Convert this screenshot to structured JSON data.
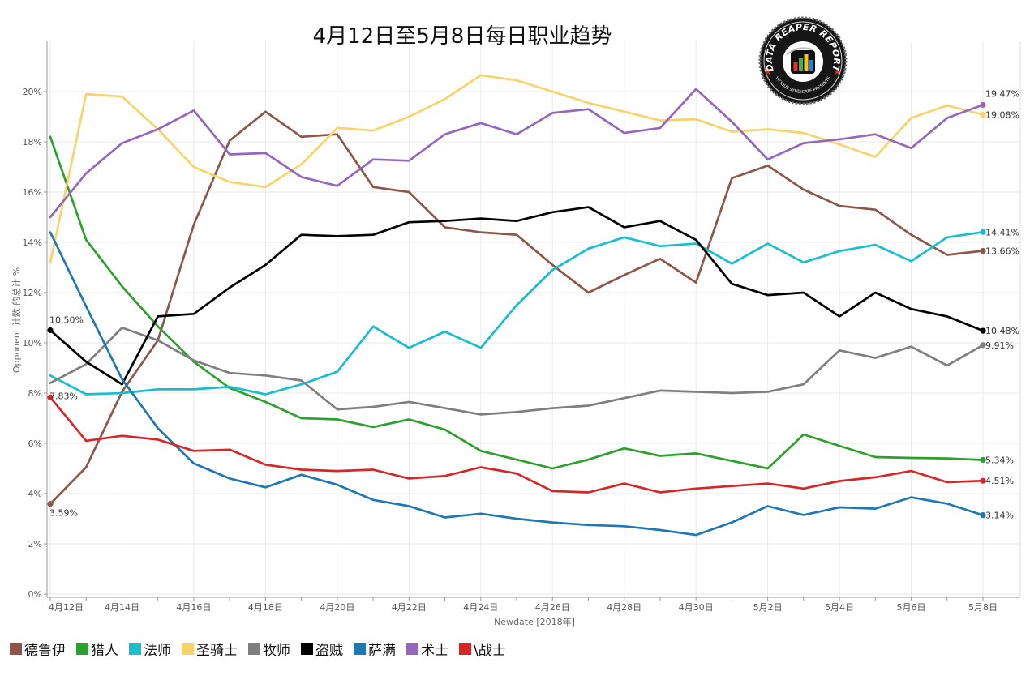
{
  "chart_data": {
    "type": "line",
    "title": "4月12日至5月8日每日职业趋势",
    "xlabel": "Newdate [2018年]",
    "ylabel": "Opponent 计数 的总计 %",
    "x": [
      0,
      1,
      2,
      3,
      4,
      5,
      6,
      7,
      8,
      9,
      10,
      11,
      12,
      13,
      14,
      15,
      16,
      17,
      18,
      19,
      20,
      21,
      22,
      23,
      24,
      25,
      26
    ],
    "x_ticks": [
      {
        "day": 0,
        "label": "4月12日"
      },
      {
        "day": 2,
        "label": "4月14日"
      },
      {
        "day": 4,
        "label": "4月16日"
      },
      {
        "day": 6,
        "label": "4月18日"
      },
      {
        "day": 8,
        "label": "4月20日"
      },
      {
        "day": 10,
        "label": "4月22日"
      },
      {
        "day": 12,
        "label": "4月24日"
      },
      {
        "day": 14,
        "label": "4月26日"
      },
      {
        "day": 16,
        "label": "4月28日"
      },
      {
        "day": 18,
        "label": "4月30日"
      },
      {
        "day": 20,
        "label": "5月2日"
      },
      {
        "day": 22,
        "label": "5月4日"
      },
      {
        "day": 24,
        "label": "5月6日"
      },
      {
        "day": 26,
        "label": "5月8日"
      }
    ],
    "y_ticks": [
      {
        "value": 0,
        "label": "0%"
      },
      {
        "value": 2,
        "label": "2%"
      },
      {
        "value": 4,
        "label": "4%"
      },
      {
        "value": 6,
        "label": "6%"
      },
      {
        "value": 8,
        "label": "8%"
      },
      {
        "value": 10,
        "label": "10%"
      },
      {
        "value": 12,
        "label": "12%"
      },
      {
        "value": 14,
        "label": "14%"
      },
      {
        "value": 16,
        "label": "16%"
      },
      {
        "value": 18,
        "label": "18%"
      },
      {
        "value": 20,
        "label": "20%"
      }
    ],
    "ylim": [
      0,
      22
    ],
    "grid": true,
    "legend_position": "bottom",
    "series": [
      {
        "name": "德鲁伊",
        "color": "#8c564b",
        "values": [
          3.59,
          5.05,
          8.05,
          10.1,
          14.7,
          18.05,
          19.2,
          18.2,
          18.3,
          16.2,
          16.0,
          14.6,
          14.4,
          14.3,
          13.1,
          12.0,
          12.7,
          13.35,
          12.4,
          16.55,
          17.05,
          16.1,
          15.45,
          15.3,
          14.3,
          13.5,
          13.66
        ],
        "start_label": "3.59%",
        "end_label": "13.66%"
      },
      {
        "name": "猎人",
        "color": "#2ca02c",
        "values": [
          18.2,
          14.1,
          12.25,
          10.65,
          9.25,
          8.2,
          7.65,
          7.0,
          6.95,
          6.65,
          6.95,
          6.55,
          5.7,
          5.35,
          5.0,
          5.35,
          5.8,
          5.5,
          5.6,
          5.3,
          5.0,
          6.35,
          5.9,
          5.45,
          5.42,
          5.4,
          5.34
        ],
        "end_label": "5.34%"
      },
      {
        "name": "法师",
        "color": "#17becf",
        "values": [
          8.7,
          7.95,
          8.0,
          8.15,
          8.15,
          8.25,
          7.95,
          8.35,
          8.85,
          10.65,
          9.8,
          10.45,
          9.8,
          11.5,
          12.9,
          13.75,
          14.2,
          13.85,
          13.95,
          13.15,
          13.95,
          13.2,
          13.65,
          13.9,
          13.25,
          14.2,
          14.41
        ],
        "end_label": "14.41%"
      },
      {
        "name": "圣骑士",
        "color": "#f6d46a",
        "values": [
          13.2,
          19.9,
          19.8,
          18.5,
          17.0,
          16.4,
          16.2,
          17.1,
          18.55,
          18.45,
          19.0,
          19.7,
          20.65,
          20.45,
          20.0,
          19.55,
          19.2,
          18.85,
          18.9,
          18.4,
          18.5,
          18.35,
          17.9,
          17.4,
          18.95,
          19.45,
          19.08
        ],
        "end_label": "19.08%"
      },
      {
        "name": "牧师",
        "color": "#7f7f7f",
        "values": [
          8.4,
          9.15,
          10.6,
          10.1,
          9.3,
          8.8,
          8.7,
          8.5,
          7.35,
          7.45,
          7.65,
          7.4,
          7.15,
          7.25,
          7.4,
          7.5,
          7.8,
          8.1,
          8.05,
          8.0,
          8.05,
          8.35,
          9.7,
          9.4,
          9.85,
          9.1,
          9.91
        ],
        "end_label": "9.91%"
      },
      {
        "name": "盗贼",
        "color": "#000000",
        "values": [
          10.5,
          9.25,
          8.35,
          11.05,
          11.15,
          12.2,
          13.1,
          14.3,
          14.25,
          14.3,
          14.8,
          14.85,
          14.95,
          14.85,
          15.2,
          15.4,
          14.6,
          14.85,
          14.1,
          12.35,
          11.9,
          12.0,
          11.05,
          12.0,
          11.35,
          11.05,
          10.48
        ],
        "start_label": "10.50%",
        "end_label": "10.48%"
      },
      {
        "name": "萨满",
        "color": "#1f77b4",
        "values": [
          14.4,
          11.45,
          8.55,
          6.6,
          5.2,
          4.6,
          4.25,
          4.75,
          4.35,
          3.75,
          3.5,
          3.05,
          3.2,
          3.0,
          2.85,
          2.75,
          2.7,
          2.55,
          2.35,
          2.85,
          3.5,
          3.15,
          3.45,
          3.4,
          3.85,
          3.6,
          3.14
        ],
        "end_label": "3.14%"
      },
      {
        "name": "术士",
        "color": "#9467bd",
        "values": [
          15.0,
          16.75,
          17.95,
          18.5,
          19.25,
          17.5,
          17.55,
          16.6,
          16.25,
          17.3,
          17.25,
          18.3,
          18.75,
          18.3,
          19.15,
          19.3,
          18.35,
          18.55,
          20.1,
          18.8,
          17.3,
          17.95,
          18.1,
          18.3,
          17.75,
          18.95,
          19.47
        ],
        "end_label": "19.47%"
      },
      {
        "name": "\\战士",
        "color": "#d62728",
        "values": [
          7.83,
          6.1,
          6.3,
          6.15,
          5.7,
          5.75,
          5.15,
          4.95,
          4.9,
          4.95,
          4.6,
          4.7,
          5.05,
          4.8,
          4.1,
          4.05,
          4.4,
          4.05,
          4.2,
          4.3,
          4.4,
          4.2,
          4.5,
          4.65,
          4.9,
          4.45,
          4.51
        ],
        "start_label": "7.83%",
        "end_label": "4.51%"
      }
    ]
  },
  "logo": {
    "top_text": "DATA REAPER REPORT",
    "bottom_text": "VICIOUS SYNDICATE PRESENTS",
    "star_color": "#e0302a"
  }
}
